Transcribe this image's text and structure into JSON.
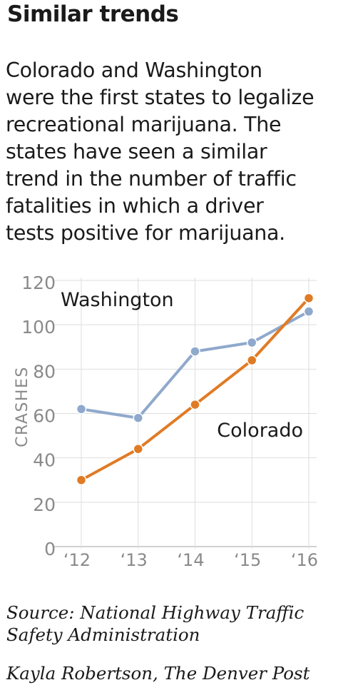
{
  "header": {
    "title": "Similar trends",
    "subtitle_lines": [
      "Colorado and Washington",
      "were the first states to legalize",
      "recreational marijuana. The",
      "states have seen a similar",
      "trend in the number of traffic",
      "fatalities in which a driver",
      "tests positive for marijuana."
    ]
  },
  "footer": {
    "source_lines": [
      "Source:  National Highway Traffic",
      "Safety Administration"
    ],
    "credit": "Kayla Robertson, The Denver Post"
  },
  "chart_data": {
    "type": "line",
    "x": [
      "‘12",
      "‘13",
      "‘14",
      "‘15",
      "‘16"
    ],
    "ylabel": "CRASHES",
    "ylim": [
      0,
      120
    ],
    "yticks": [
      0,
      20,
      40,
      60,
      80,
      100,
      120
    ],
    "grid": true,
    "series": [
      {
        "name": "Washington",
        "values": [
          62,
          58,
          88,
          92,
          106
        ],
        "color": "#8fa9cc"
      },
      {
        "name": "Colorado",
        "values": [
          30,
          44,
          64,
          84,
          112
        ],
        "color": "#e07b25"
      }
    ]
  }
}
